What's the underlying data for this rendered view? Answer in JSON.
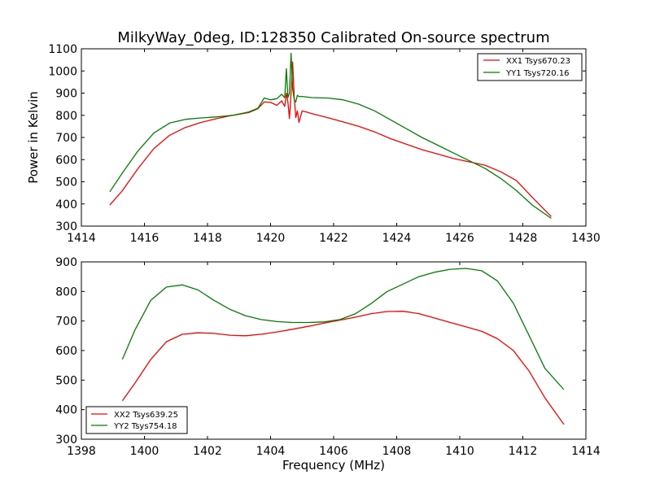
{
  "chart_data": [
    {
      "type": "line",
      "title": "MilkyWay_0deg, ID:128350 Calibrated On-source spectrum",
      "xlabel": "",
      "ylabel": "Power in Kelvin",
      "xlim": [
        1414,
        1430
      ],
      "ylim": [
        300,
        1100
      ],
      "xticks": [
        1414,
        1416,
        1418,
        1420,
        1422,
        1424,
        1426,
        1428,
        1430
      ],
      "yticks": [
        300,
        400,
        500,
        600,
        700,
        800,
        900,
        1000,
        1100
      ],
      "legend_position": "top-right",
      "series": [
        {
          "name": "XX1 Tsys670.23",
          "color": "#ff0000",
          "x": [
            1414.9,
            1415.3,
            1415.8,
            1416.3,
            1416.8,
            1417.3,
            1417.8,
            1418.3,
            1418.8,
            1419.3,
            1419.6,
            1419.8,
            1420.0,
            1420.2,
            1420.35,
            1420.45,
            1420.5,
            1420.55,
            1420.6,
            1420.65,
            1420.7,
            1420.75,
            1420.8,
            1420.85,
            1420.9,
            1421.0,
            1421.3,
            1421.8,
            1422.3,
            1422.8,
            1423.3,
            1423.8,
            1424.3,
            1424.8,
            1425.3,
            1425.8,
            1426.3,
            1426.8,
            1427.3,
            1427.8,
            1428.3,
            1428.9
          ],
          "values": [
            395,
            460,
            560,
            650,
            710,
            745,
            768,
            785,
            800,
            812,
            830,
            860,
            858,
            845,
            865,
            840,
            900,
            860,
            785,
            900,
            1040,
            880,
            790,
            820,
            768,
            820,
            808,
            790,
            770,
            750,
            725,
            695,
            670,
            645,
            625,
            605,
            590,
            575,
            545,
            505,
            430,
            343
          ]
        },
        {
          "name": "YY1 Tsys720.16",
          "color": "#008000",
          "x": [
            1414.9,
            1415.3,
            1415.8,
            1416.3,
            1416.8,
            1417.3,
            1417.8,
            1418.3,
            1418.8,
            1419.3,
            1419.6,
            1419.8,
            1420.0,
            1420.2,
            1420.35,
            1420.45,
            1420.5,
            1420.55,
            1420.6,
            1420.65,
            1420.7,
            1420.75,
            1420.8,
            1420.85,
            1420.9,
            1421.0,
            1421.3,
            1421.8,
            1422.3,
            1422.8,
            1423.3,
            1423.8,
            1424.3,
            1424.8,
            1425.3,
            1425.8,
            1426.3,
            1426.8,
            1427.3,
            1427.8,
            1428.3,
            1428.9
          ],
          "values": [
            455,
            540,
            640,
            720,
            765,
            782,
            788,
            793,
            800,
            815,
            832,
            878,
            870,
            875,
            895,
            880,
            1010,
            880,
            900,
            1080,
            920,
            870,
            860,
            890,
            885,
            885,
            880,
            878,
            870,
            850,
            820,
            780,
            740,
            700,
            665,
            630,
            595,
            560,
            515,
            460,
            395,
            335
          ]
        }
      ]
    },
    {
      "type": "line",
      "title": "",
      "xlabel": "Frequency (MHz)",
      "ylabel": "",
      "xlim": [
        1398,
        1414
      ],
      "ylim": [
        300,
        900
      ],
      "xticks": [
        1398,
        1400,
        1402,
        1404,
        1406,
        1408,
        1410,
        1412,
        1414
      ],
      "yticks": [
        300,
        400,
        500,
        600,
        700,
        800,
        900
      ],
      "legend_position": "bottom-left",
      "series": [
        {
          "name": "XX2 Tsys639.25",
          "color": "#ff0000",
          "x": [
            1399.3,
            1399.7,
            1400.2,
            1400.7,
            1401.2,
            1401.7,
            1402.2,
            1402.7,
            1403.2,
            1403.7,
            1404.2,
            1404.7,
            1405.2,
            1405.7,
            1406.2,
            1406.7,
            1407.2,
            1407.7,
            1408.2,
            1408.7,
            1409.2,
            1409.7,
            1410.2,
            1410.7,
            1411.2,
            1411.7,
            1412.2,
            1412.7,
            1413.3
          ],
          "values": [
            430,
            490,
            570,
            630,
            655,
            660,
            658,
            652,
            650,
            655,
            663,
            672,
            682,
            693,
            703,
            713,
            725,
            732,
            733,
            725,
            710,
            695,
            680,
            665,
            640,
            600,
            530,
            440,
            350
          ]
        },
        {
          "name": "YY2 Tsys754.18",
          "color": "#008000",
          "x": [
            1399.3,
            1399.7,
            1400.2,
            1400.7,
            1401.2,
            1401.7,
            1402.2,
            1402.7,
            1403.2,
            1403.7,
            1404.2,
            1404.7,
            1405.2,
            1405.7,
            1406.2,
            1406.7,
            1407.2,
            1407.7,
            1408.2,
            1408.7,
            1409.2,
            1409.7,
            1410.2,
            1410.7,
            1411.2,
            1411.7,
            1412.2,
            1412.7,
            1413.3
          ],
          "values": [
            570,
            670,
            770,
            815,
            822,
            805,
            770,
            740,
            718,
            705,
            698,
            695,
            695,
            697,
            705,
            725,
            760,
            800,
            825,
            850,
            865,
            875,
            878,
            870,
            835,
            760,
            650,
            540,
            468
          ]
        }
      ]
    }
  ]
}
